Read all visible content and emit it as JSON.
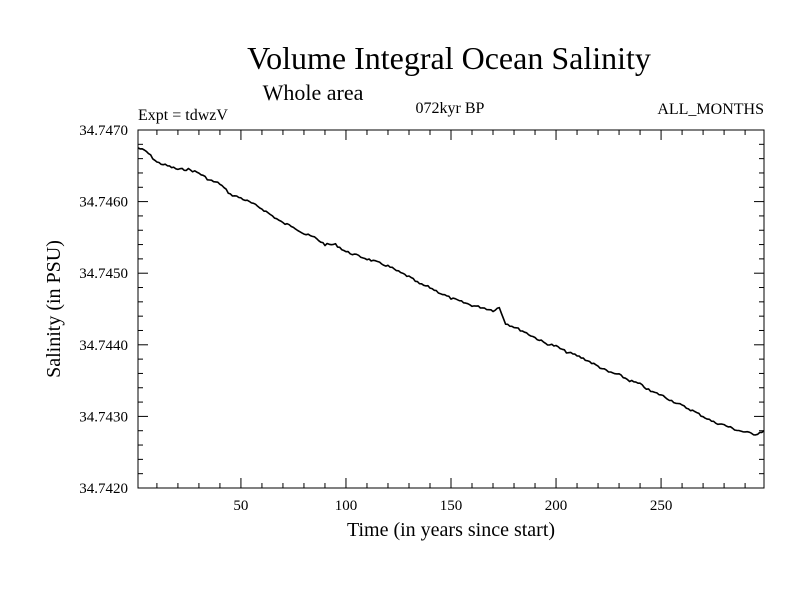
{
  "chart_data": {
    "type": "line",
    "title": "Volume Integral Ocean Salinity",
    "subtitle": "Whole area",
    "annotations": {
      "left": "Expt = tdwzV",
      "center": "072kyr BP",
      "right": "ALL_MONTHS"
    },
    "xlabel": "Time (in years since start)",
    "ylabel": "Salinity (in PSU)",
    "xlim": [
      1,
      299
    ],
    "ylim": [
      34.742,
      34.747
    ],
    "xticks": [
      50,
      100,
      150,
      200,
      250
    ],
    "xtick_labels": [
      "50",
      "100",
      "150",
      "200",
      "250"
    ],
    "yticks": [
      34.742,
      34.743,
      34.744,
      34.745,
      34.746,
      34.747
    ],
    "ytick_labels": [
      "34.7420",
      "34.7430",
      "34.7440",
      "34.7450",
      "34.7460",
      "34.7470"
    ],
    "grid": false,
    "colors": {
      "line": "#000000",
      "axes": "#000000",
      "background": "#ffffff"
    },
    "series": [
      {
        "x": [
          1,
          5,
          10,
          15,
          20,
          25,
          30,
          35,
          40,
          45,
          50,
          55,
          60,
          65,
          70,
          75,
          80,
          85,
          90,
          95,
          100,
          105,
          110,
          115,
          120,
          125,
          130,
          135,
          140,
          145,
          150,
          155,
          160,
          165,
          170,
          173,
          176,
          180,
          185,
          190,
          195,
          200,
          205,
          210,
          215,
          220,
          225,
          230,
          235,
          240,
          245,
          250,
          255,
          260,
          265,
          270,
          275,
          280,
          285,
          290,
          295,
          299
        ],
        "values": [
          34.74675,
          34.7467,
          34.74655,
          34.7465,
          34.74645,
          34.74645,
          34.7464,
          34.7463,
          34.74625,
          34.7461,
          34.74605,
          34.74598,
          34.7459,
          34.7458,
          34.7457,
          34.74565,
          34.74555,
          34.7455,
          34.7454,
          34.7454,
          34.7453,
          34.74525,
          34.7452,
          34.74515,
          34.7451,
          34.74502,
          34.74495,
          34.74485,
          34.7448,
          34.74472,
          34.74465,
          34.7446,
          34.74455,
          34.74452,
          34.74448,
          34.74452,
          34.7443,
          34.74425,
          34.74418,
          34.7441,
          34.74402,
          34.74398,
          34.7439,
          34.74385,
          34.74378,
          34.7437,
          34.74362,
          34.74358,
          34.7435,
          34.74345,
          34.74335,
          34.7433,
          34.74322,
          34.74315,
          34.74308,
          34.743,
          34.74292,
          34.74288,
          34.74282,
          34.74278,
          34.74275,
          34.7428
        ]
      }
    ]
  }
}
